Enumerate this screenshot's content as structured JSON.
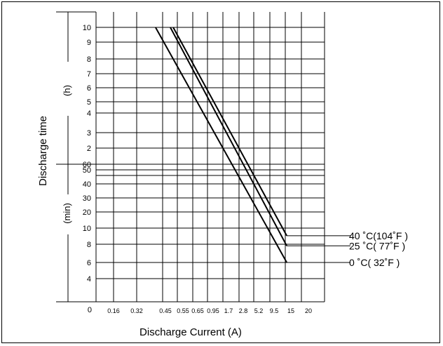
{
  "chart_data": {
    "type": "line",
    "xlabel": "Discharge Current (A)",
    "ylabel": "Discharge time",
    "y_unit_upper": "(h)",
    "y_unit_lower": "(min)",
    "x_ticks": [
      "0",
      "0.16",
      "0.32",
      "0.45",
      "0.55",
      "0.65",
      "0.95",
      "1.7",
      "2.8",
      "5.2",
      "9.5",
      "15",
      "20"
    ],
    "y_ticks_hours": [
      "10",
      "9",
      "8",
      "7",
      "6",
      "5",
      "4",
      "3",
      "2"
    ],
    "y_ticks_minutes": [
      "60",
      "50",
      "40",
      "30",
      "20",
      "10",
      "8",
      "6",
      "4"
    ],
    "y_ticks_bottom": [
      "0"
    ],
    "log_scale": true,
    "grid": true,
    "series": [
      {
        "name": "40 ˚C(104˚F )",
        "points": [
          {
            "x": 0.52,
            "y": 600
          },
          {
            "x": 15.4,
            "y": 9
          }
        ]
      },
      {
        "name": "25 ˚C( 77˚F )",
        "points": [
          {
            "x": 0.5,
            "y": 600
          },
          {
            "x": 15.4,
            "y": 7.8
          }
        ]
      },
      {
        "name": "0 ˚C( 32˚F )",
        "points": [
          {
            "x": 0.41,
            "y": 600
          },
          {
            "x": 15.4,
            "y": 6
          }
        ]
      }
    ]
  }
}
